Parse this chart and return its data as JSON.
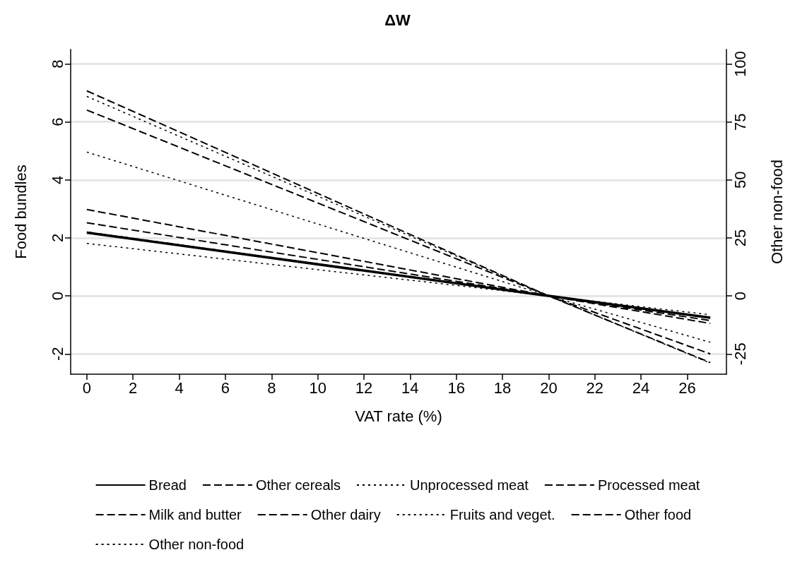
{
  "chart_data": {
    "type": "line",
    "title": "ΔW",
    "xlabel": "VAT rate (%)",
    "ylabel": "Food bundles",
    "y2label": "Other non-food",
    "x": [
      0,
      20,
      27
    ],
    "xlim": [
      -0.7,
      27.7
    ],
    "xticks": [
      0,
      2,
      4,
      6,
      8,
      10,
      12,
      14,
      16,
      18,
      20,
      22,
      24,
      26
    ],
    "ylim": [
      -2.7,
      8.5
    ],
    "yticks": [
      -2,
      0,
      2,
      4,
      6,
      8
    ],
    "y2lim": [
      -33.75,
      106.25
    ],
    "y2ticks": [
      -25,
      0,
      25,
      50,
      75,
      100
    ],
    "grid": "y",
    "legend": "bottom",
    "marker": "none",
    "series": [
      {
        "name": "Bread",
        "color": "#000000",
        "line_style": "solid",
        "values": [
          2.18,
          0,
          -0.75
        ]
      },
      {
        "name": "Other cereals",
        "color": "#000000",
        "line_style": "dashed",
        "values": [
          2.98,
          0,
          -0.95
        ]
      },
      {
        "name": "Unprocessed meat",
        "color": "#000000",
        "line_style": "dotted",
        "values": [
          1.81,
          0,
          -0.65
        ]
      },
      {
        "name": "Processed meat",
        "color": "#000000",
        "line_style": "dashed",
        "values": [
          6.41,
          0,
          -2.0
        ]
      },
      {
        "name": "Milk and butter",
        "color": "#000000",
        "line_style": "dashed",
        "values": [
          2.2,
          0,
          -0.75
        ]
      },
      {
        "name": "Other dairy",
        "color": "#000000",
        "line_style": "dashed",
        "values": [
          2.52,
          0,
          -0.85
        ]
      },
      {
        "name": "Fruits and veget.",
        "color": "#000000",
        "line_style": "dotted",
        "values": [
          4.96,
          0,
          -1.6
        ]
      },
      {
        "name": "Other food",
        "color": "#000000",
        "line_style": "dashed",
        "values": [
          7.07,
          0,
          -2.3
        ]
      },
      {
        "name": "Other non-food",
        "color": "#000000",
        "line_style": "dotted",
        "axis": "y2",
        "values": [
          86,
          0,
          -29
        ]
      }
    ]
  }
}
